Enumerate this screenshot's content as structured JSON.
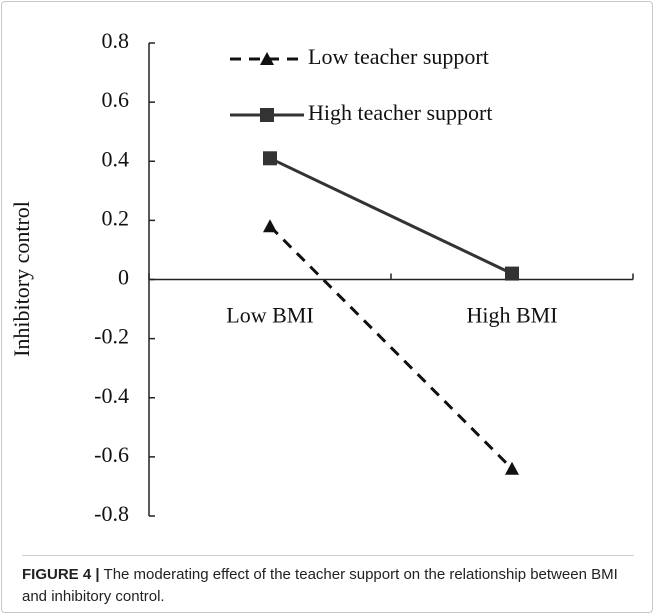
{
  "chart_data": {
    "type": "line",
    "y_label": "Inhibitory control",
    "categories": [
      "Low BMI",
      "High BMI"
    ],
    "series": [
      {
        "name": "Low teacher support",
        "color": "#111111",
        "line_style": "dashed",
        "marker": "triangle",
        "values": [
          0.18,
          -0.64
        ]
      },
      {
        "name": "High teacher support",
        "color": "#333333",
        "line_style": "solid",
        "marker": "square",
        "values": [
          0.41,
          0.02
        ]
      }
    ],
    "ylim": [
      -0.8,
      0.8
    ],
    "yticks": [
      -0.8,
      -0.6,
      -0.4,
      -0.2,
      0,
      0.2,
      0.4,
      0.6,
      0.8
    ],
    "grid": false,
    "legend": "top"
  },
  "caption_label": "FIGURE 4 |",
  "caption": "The moderating effect of the teacher support on the relationship between BMI and inhibitory control."
}
